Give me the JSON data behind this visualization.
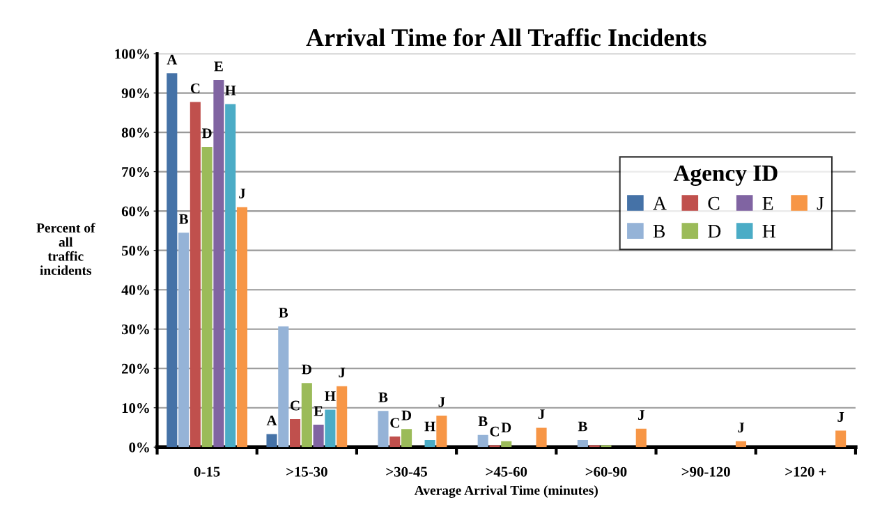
{
  "chart_data": {
    "type": "bar",
    "title": "Arrival Time for All Traffic Incidents",
    "xlabel": "Average Arrival Time (minutes)",
    "ylabel": "Percent of\nall\ntraffic\nincidents",
    "legend_title": "Agency ID",
    "legend": "right",
    "grid": "y",
    "categories": [
      "0-15",
      ">15-30",
      ">30-45",
      ">45-60",
      ">60-90",
      ">90-120",
      ">120 +"
    ],
    "ylim": [
      0,
      100
    ],
    "yticks": [
      {
        "value": 0,
        "label": "0%"
      },
      {
        "value": 10,
        "label": "10%"
      },
      {
        "value": 20,
        "label": "20%"
      },
      {
        "value": 30,
        "label": "30%"
      },
      {
        "value": 40,
        "label": "40%"
      },
      {
        "value": 50,
        "label": "50%"
      },
      {
        "value": 60,
        "label": "60%"
      },
      {
        "value": 70,
        "label": "70%"
      },
      {
        "value": 80,
        "label": "80%"
      },
      {
        "value": 90,
        "label": "90%"
      },
      {
        "value": 100,
        "label": "100%"
      }
    ],
    "series": [
      {
        "name": "A",
        "color": "#4572a7",
        "values": [
          95,
          3.3,
          null,
          null,
          null,
          null,
          null
        ],
        "value_labels": [
          "A",
          "A",
          null,
          null,
          null,
          null,
          null
        ]
      },
      {
        "name": "B",
        "color": "#95b3d7",
        "values": [
          54.5,
          30.7,
          9.2,
          3.1,
          1.8,
          null,
          null
        ],
        "value_labels": [
          "B",
          "B",
          "B",
          "B",
          "B",
          null,
          null
        ]
      },
      {
        "name": "C",
        "color": "#c0504d",
        "values": [
          87.7,
          7.1,
          2.7,
          0.5,
          0.5,
          null,
          null
        ],
        "value_labels": [
          "C",
          "C",
          "C",
          "C",
          null,
          null,
          null
        ]
      },
      {
        "name": "D",
        "color": "#9bbb59",
        "values": [
          76.3,
          16.3,
          4.6,
          1.5,
          0.5,
          null,
          null
        ],
        "value_labels": [
          "D",
          "D",
          "D",
          "D",
          null,
          null,
          null
        ]
      },
      {
        "name": "E",
        "color": "#8064a2",
        "values": [
          93.3,
          5.7,
          null,
          null,
          null,
          null,
          null
        ],
        "value_labels": [
          "E",
          "E",
          null,
          null,
          null,
          null,
          null
        ]
      },
      {
        "name": "H",
        "color": "#4bacc6",
        "values": [
          87.2,
          9.5,
          1.8,
          null,
          null,
          null,
          null
        ],
        "value_labels": [
          "H",
          "H",
          "H",
          null,
          null,
          null,
          null
        ]
      },
      {
        "name": "J",
        "color": "#f79646",
        "values": [
          61,
          15.5,
          8,
          4.9,
          4.7,
          1.5,
          4.2
        ],
        "value_labels": [
          "J",
          "J",
          "J",
          "J",
          "J",
          "J",
          "J"
        ]
      }
    ]
  }
}
